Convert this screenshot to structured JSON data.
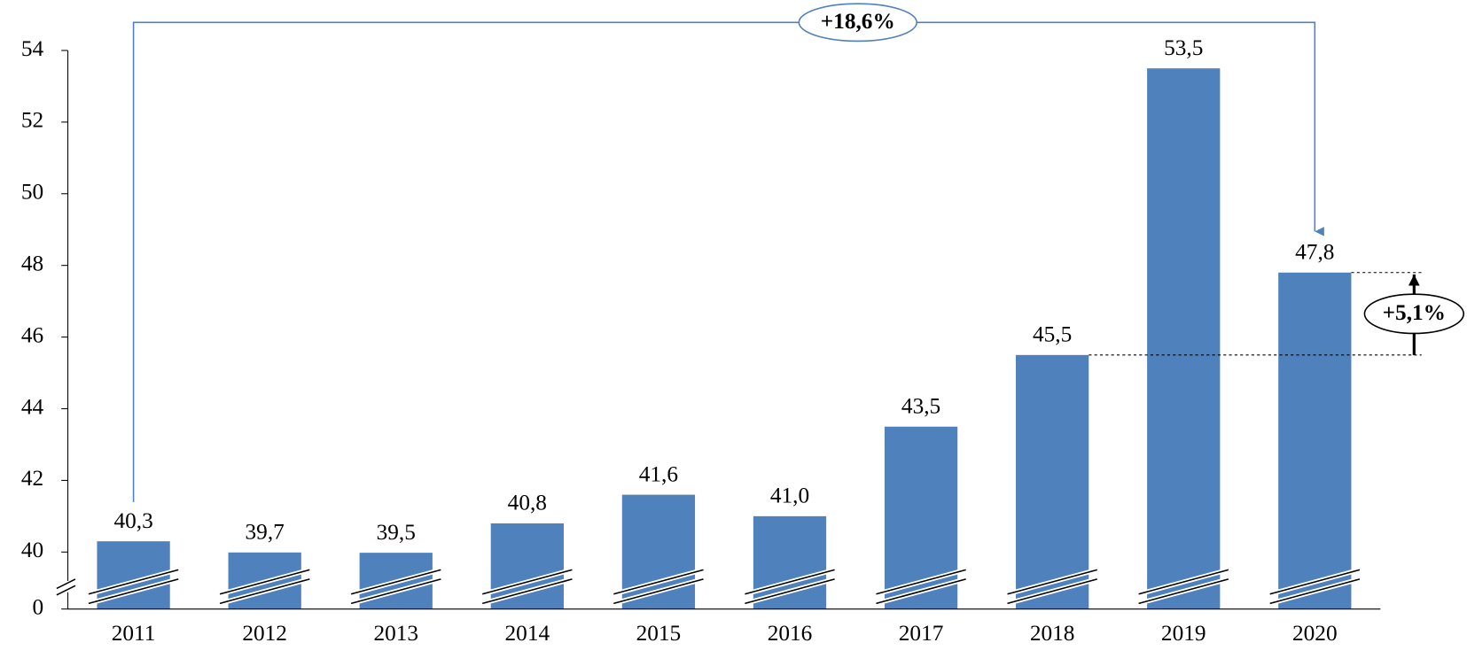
{
  "chart_data": {
    "type": "bar",
    "categories": [
      "2011",
      "2012",
      "2013",
      "2014",
      "2015",
      "2016",
      "2017",
      "2018",
      "2019",
      "2020"
    ],
    "values": [
      40.3,
      39.7,
      39.5,
      40.8,
      41.6,
      41.0,
      43.5,
      45.5,
      53.5,
      47.8
    ],
    "value_labels": [
      "40,3",
      "39,7",
      "39,5",
      "40,8",
      "41,6",
      "41,0",
      "43,5",
      "45,5",
      "53,5",
      "47,8"
    ],
    "color": "#4f81bd",
    "ylim": [
      0,
      54
    ],
    "axis_break": [
      0,
      40
    ],
    "yticks": [
      0,
      40,
      42,
      44,
      46,
      48,
      50,
      52,
      54
    ],
    "grid": false,
    "annotations": [
      "+18,6%",
      "+5,1%"
    ]
  }
}
